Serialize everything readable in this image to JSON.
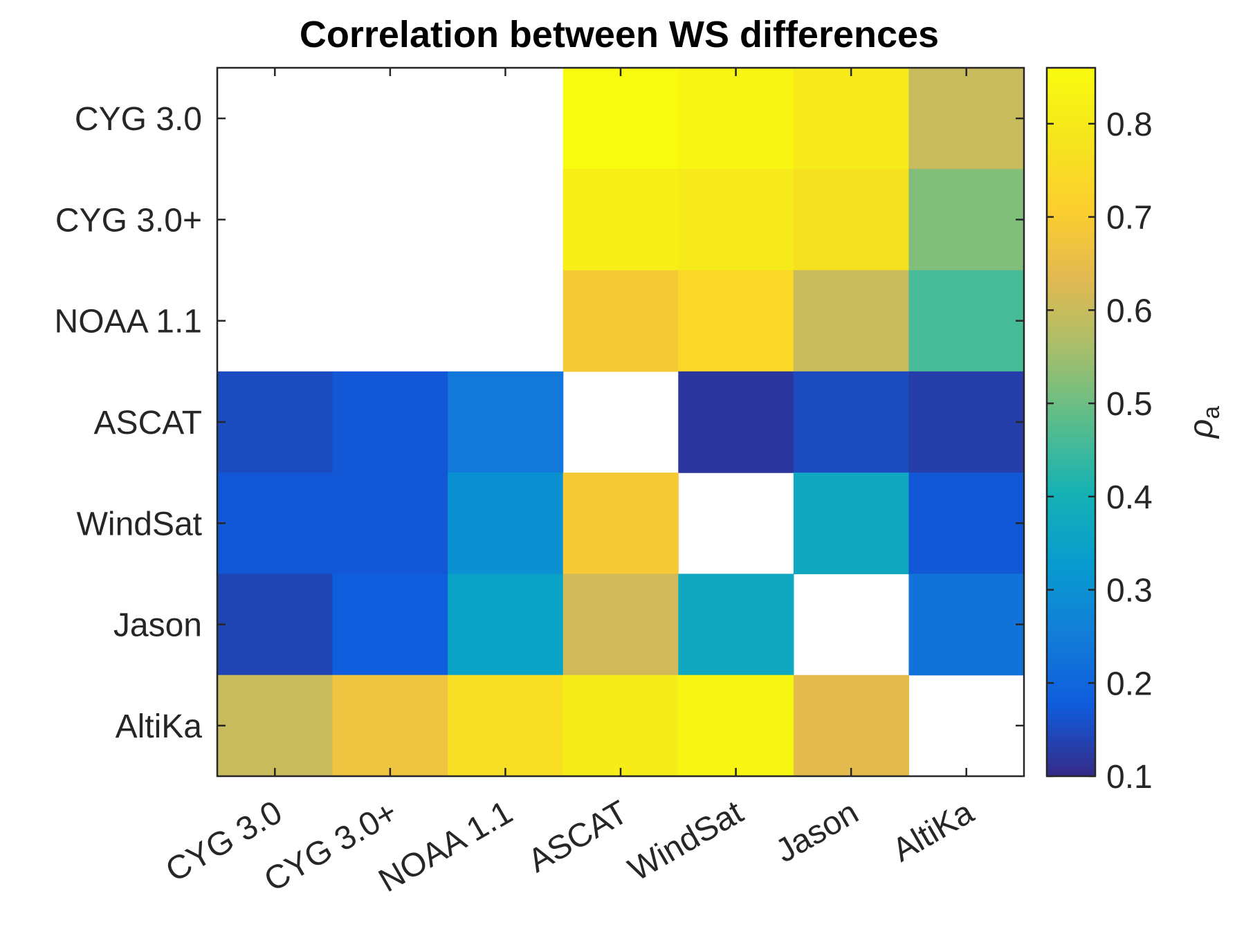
{
  "chart_data": {
    "type": "heatmap",
    "title": "Correlation between WS differences",
    "x_categories": [
      "CYG 3.0",
      "CYG 3.0+",
      "NOAA 1.1",
      "ASCAT",
      "WindSat",
      "Jason",
      "AltiKa"
    ],
    "y_categories": [
      "CYG 3.0",
      "CYG 3.0+",
      "NOAA 1.1",
      "ASCAT",
      "WindSat",
      "Jason",
      "AltiKa"
    ],
    "values": [
      [
        null,
        null,
        null,
        0.86,
        0.84,
        0.8,
        0.6
      ],
      [
        null,
        null,
        null,
        0.82,
        0.8,
        0.77,
        0.52
      ],
      [
        null,
        null,
        null,
        0.69,
        0.74,
        0.6,
        0.46
      ],
      [
        0.15,
        0.17,
        0.24,
        null,
        0.12,
        0.15,
        0.13
      ],
      [
        0.17,
        0.17,
        0.3,
        0.69,
        null,
        0.37,
        0.17
      ],
      [
        0.14,
        0.18,
        0.35,
        0.61,
        0.37,
        null,
        0.23
      ],
      [
        0.6,
        0.67,
        0.76,
        0.81,
        0.84,
        0.64,
        null
      ]
    ],
    "colorbar": {
      "label": "ρa",
      "label_symbol": "ρ",
      "label_subscript": "a",
      "min": 0.1,
      "max": 0.86,
      "ticks": [
        "0.1",
        "0.2",
        "0.3",
        "0.4",
        "0.5",
        "0.6",
        "0.7",
        "0.8"
      ],
      "colormap": "parula"
    }
  }
}
